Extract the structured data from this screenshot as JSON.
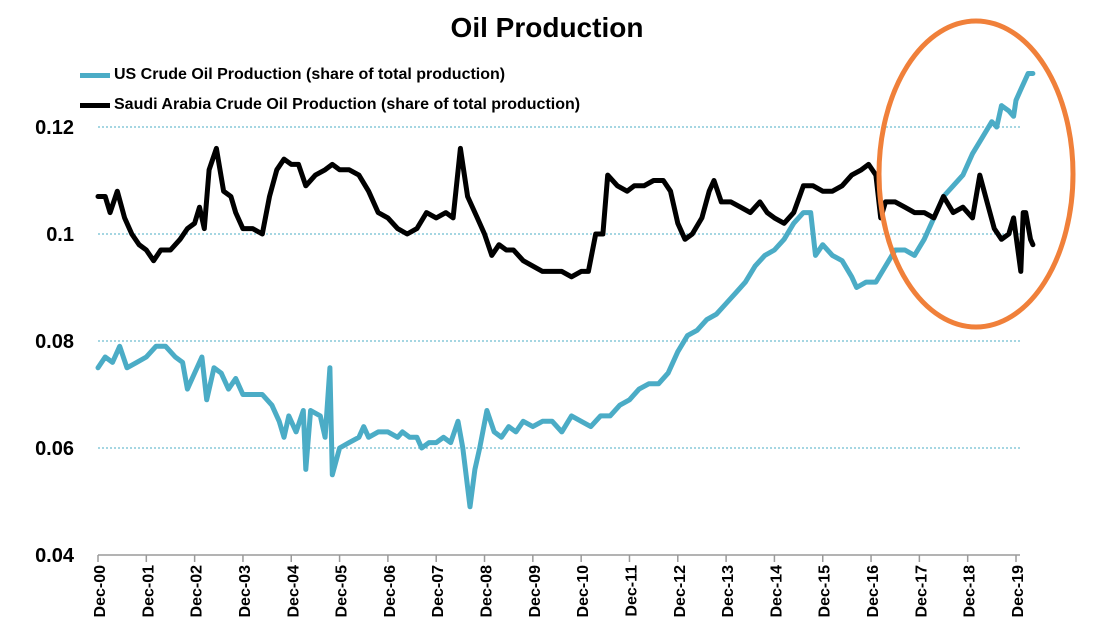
{
  "chart_data": {
    "type": "line",
    "title": "Oil Production",
    "xlabel": "",
    "ylabel": "",
    "ylim": [
      0.04,
      0.13
    ],
    "y_ticks": [
      "0.04",
      "0.06",
      "0.08",
      "0.1",
      "0.12"
    ],
    "x_ticks": [
      "Dec-00",
      "Dec-01",
      "Dec-02",
      "Dec-03",
      "Dec-04",
      "Dec-05",
      "Dec-06",
      "Dec-07",
      "Dec-08",
      "Dec-09",
      "Dec-10",
      "Dec-11",
      "Dec-12",
      "Dec-13",
      "Dec-14",
      "Dec-15",
      "Dec-16",
      "Dec-17",
      "Dec-18",
      "Dec-19"
    ],
    "x_range_years_since_dec00": [
      0,
      19
    ],
    "grid": "horizontal dashed",
    "legend_position": "top-left",
    "series": [
      {
        "name": "US Crude Oil Production (share of total production)",
        "color": "#4bacc6",
        "points": [
          [
            0,
            0.075
          ],
          [
            0.15,
            0.077
          ],
          [
            0.3,
            0.076
          ],
          [
            0.45,
            0.079
          ],
          [
            0.6,
            0.075
          ],
          [
            0.8,
            0.076
          ],
          [
            1.0,
            0.077
          ],
          [
            1.2,
            0.079
          ],
          [
            1.4,
            0.079
          ],
          [
            1.6,
            0.077
          ],
          [
            1.75,
            0.076
          ],
          [
            1.85,
            0.071
          ],
          [
            2.0,
            0.074
          ],
          [
            2.15,
            0.077
          ],
          [
            2.25,
            0.069
          ],
          [
            2.4,
            0.075
          ],
          [
            2.55,
            0.074
          ],
          [
            2.7,
            0.071
          ],
          [
            2.85,
            0.073
          ],
          [
            3.0,
            0.07
          ],
          [
            3.2,
            0.07
          ],
          [
            3.4,
            0.07
          ],
          [
            3.6,
            0.068
          ],
          [
            3.75,
            0.065
          ],
          [
            3.85,
            0.062
          ],
          [
            3.95,
            0.066
          ],
          [
            4.1,
            0.063
          ],
          [
            4.25,
            0.067
          ],
          [
            4.3,
            0.056
          ],
          [
            4.4,
            0.067
          ],
          [
            4.6,
            0.066
          ],
          [
            4.7,
            0.062
          ],
          [
            4.8,
            0.075
          ],
          [
            4.85,
            0.055
          ],
          [
            5.0,
            0.06
          ],
          [
            5.2,
            0.061
          ],
          [
            5.4,
            0.062
          ],
          [
            5.5,
            0.064
          ],
          [
            5.6,
            0.062
          ],
          [
            5.8,
            0.063
          ],
          [
            6.0,
            0.063
          ],
          [
            6.2,
            0.062
          ],
          [
            6.3,
            0.063
          ],
          [
            6.45,
            0.062
          ],
          [
            6.6,
            0.062
          ],
          [
            6.7,
            0.06
          ],
          [
            6.85,
            0.061
          ],
          [
            7.0,
            0.061
          ],
          [
            7.15,
            0.062
          ],
          [
            7.3,
            0.061
          ],
          [
            7.45,
            0.065
          ],
          [
            7.55,
            0.06
          ],
          [
            7.7,
            0.049
          ],
          [
            7.8,
            0.056
          ],
          [
            7.9,
            0.06
          ],
          [
            8.05,
            0.067
          ],
          [
            8.2,
            0.063
          ],
          [
            8.35,
            0.062
          ],
          [
            8.5,
            0.064
          ],
          [
            8.65,
            0.063
          ],
          [
            8.8,
            0.065
          ],
          [
            9.0,
            0.064
          ],
          [
            9.2,
            0.065
          ],
          [
            9.4,
            0.065
          ],
          [
            9.6,
            0.063
          ],
          [
            9.8,
            0.066
          ],
          [
            10.0,
            0.065
          ],
          [
            10.2,
            0.064
          ],
          [
            10.4,
            0.066
          ],
          [
            10.6,
            0.066
          ],
          [
            10.8,
            0.068
          ],
          [
            11.0,
            0.069
          ],
          [
            11.2,
            0.071
          ],
          [
            11.4,
            0.072
          ],
          [
            11.6,
            0.072
          ],
          [
            11.8,
            0.074
          ],
          [
            12.0,
            0.078
          ],
          [
            12.2,
            0.081
          ],
          [
            12.4,
            0.082
          ],
          [
            12.6,
            0.084
          ],
          [
            12.8,
            0.085
          ],
          [
            13.0,
            0.087
          ],
          [
            13.2,
            0.089
          ],
          [
            13.4,
            0.091
          ],
          [
            13.6,
            0.094
          ],
          [
            13.8,
            0.096
          ],
          [
            14.0,
            0.097
          ],
          [
            14.2,
            0.099
          ],
          [
            14.4,
            0.102
          ],
          [
            14.6,
            0.104
          ],
          [
            14.75,
            0.104
          ],
          [
            14.85,
            0.096
          ],
          [
            15.0,
            0.098
          ],
          [
            15.2,
            0.096
          ],
          [
            15.4,
            0.095
          ],
          [
            15.6,
            0.092
          ],
          [
            15.7,
            0.09
          ],
          [
            15.9,
            0.091
          ],
          [
            16.1,
            0.091
          ],
          [
            16.3,
            0.094
          ],
          [
            16.5,
            0.097
          ],
          [
            16.7,
            0.097
          ],
          [
            16.9,
            0.096
          ],
          [
            17.1,
            0.099
          ],
          [
            17.3,
            0.103
          ],
          [
            17.5,
            0.107
          ],
          [
            17.7,
            0.109
          ],
          [
            17.9,
            0.111
          ],
          [
            18.1,
            0.115
          ],
          [
            18.3,
            0.118
          ],
          [
            18.5,
            0.121
          ],
          [
            18.6,
            0.12
          ],
          [
            18.7,
            0.124
          ],
          [
            18.85,
            0.123
          ],
          [
            18.95,
            0.122
          ],
          [
            19.0,
            0.125
          ],
          [
            19.1,
            0.127
          ],
          [
            19.25,
            0.13
          ],
          [
            19.35,
            0.13
          ]
        ]
      },
      {
        "name": "Saudi Arabia Crude Oil Production (share of total production)",
        "color": "#000000",
        "points": [
          [
            0,
            0.107
          ],
          [
            0.15,
            0.107
          ],
          [
            0.25,
            0.104
          ],
          [
            0.4,
            0.108
          ],
          [
            0.55,
            0.103
          ],
          [
            0.7,
            0.1
          ],
          [
            0.85,
            0.098
          ],
          [
            1.0,
            0.097
          ],
          [
            1.15,
            0.095
          ],
          [
            1.3,
            0.097
          ],
          [
            1.5,
            0.097
          ],
          [
            1.7,
            0.099
          ],
          [
            1.85,
            0.101
          ],
          [
            2.0,
            0.102
          ],
          [
            2.1,
            0.105
          ],
          [
            2.2,
            0.101
          ],
          [
            2.3,
            0.112
          ],
          [
            2.45,
            0.116
          ],
          [
            2.6,
            0.108
          ],
          [
            2.75,
            0.107
          ],
          [
            2.85,
            0.104
          ],
          [
            3.0,
            0.101
          ],
          [
            3.2,
            0.101
          ],
          [
            3.4,
            0.1
          ],
          [
            3.55,
            0.107
          ],
          [
            3.7,
            0.112
          ],
          [
            3.85,
            0.114
          ],
          [
            4.0,
            0.113
          ],
          [
            4.15,
            0.113
          ],
          [
            4.3,
            0.109
          ],
          [
            4.5,
            0.111
          ],
          [
            4.7,
            0.112
          ],
          [
            4.85,
            0.113
          ],
          [
            5.0,
            0.112
          ],
          [
            5.2,
            0.112
          ],
          [
            5.4,
            0.111
          ],
          [
            5.6,
            0.108
          ],
          [
            5.8,
            0.104
          ],
          [
            6.0,
            0.103
          ],
          [
            6.2,
            0.101
          ],
          [
            6.4,
            0.1
          ],
          [
            6.6,
            0.101
          ],
          [
            6.8,
            0.104
          ],
          [
            7.0,
            0.103
          ],
          [
            7.2,
            0.104
          ],
          [
            7.35,
            0.103
          ],
          [
            7.5,
            0.116
          ],
          [
            7.65,
            0.107
          ],
          [
            7.85,
            0.103
          ],
          [
            8.0,
            0.1
          ],
          [
            8.15,
            0.096
          ],
          [
            8.3,
            0.098
          ],
          [
            8.45,
            0.097
          ],
          [
            8.6,
            0.097
          ],
          [
            8.8,
            0.095
          ],
          [
            9.0,
            0.094
          ],
          [
            9.2,
            0.093
          ],
          [
            9.4,
            0.093
          ],
          [
            9.6,
            0.093
          ],
          [
            9.8,
            0.092
          ],
          [
            10.0,
            0.093
          ],
          [
            10.15,
            0.093
          ],
          [
            10.3,
            0.1
          ],
          [
            10.45,
            0.1
          ],
          [
            10.55,
            0.111
          ],
          [
            10.75,
            0.109
          ],
          [
            10.95,
            0.108
          ],
          [
            11.1,
            0.109
          ],
          [
            11.3,
            0.109
          ],
          [
            11.5,
            0.11
          ],
          [
            11.7,
            0.11
          ],
          [
            11.85,
            0.108
          ],
          [
            12.0,
            0.102
          ],
          [
            12.15,
            0.099
          ],
          [
            12.3,
            0.1
          ],
          [
            12.5,
            0.103
          ],
          [
            12.65,
            0.108
          ],
          [
            12.75,
            0.11
          ],
          [
            12.9,
            0.106
          ],
          [
            13.1,
            0.106
          ],
          [
            13.3,
            0.105
          ],
          [
            13.5,
            0.104
          ],
          [
            13.7,
            0.106
          ],
          [
            13.85,
            0.104
          ],
          [
            14.0,
            0.103
          ],
          [
            14.2,
            0.102
          ],
          [
            14.4,
            0.104
          ],
          [
            14.6,
            0.109
          ],
          [
            14.8,
            0.109
          ],
          [
            15.0,
            0.108
          ],
          [
            15.2,
            0.108
          ],
          [
            15.4,
            0.109
          ],
          [
            15.6,
            0.111
          ],
          [
            15.8,
            0.112
          ],
          [
            15.95,
            0.113
          ],
          [
            16.1,
            0.111
          ],
          [
            16.2,
            0.103
          ],
          [
            16.3,
            0.106
          ],
          [
            16.5,
            0.106
          ],
          [
            16.7,
            0.105
          ],
          [
            16.9,
            0.104
          ],
          [
            17.1,
            0.104
          ],
          [
            17.3,
            0.103
          ],
          [
            17.5,
            0.107
          ],
          [
            17.7,
            0.104
          ],
          [
            17.9,
            0.105
          ],
          [
            18.1,
            0.103
          ],
          [
            18.25,
            0.111
          ],
          [
            18.4,
            0.106
          ],
          [
            18.55,
            0.101
          ],
          [
            18.7,
            0.099
          ],
          [
            18.85,
            0.1
          ],
          [
            18.95,
            0.103
          ],
          [
            19.1,
            0.093
          ],
          [
            19.15,
            0.104
          ],
          [
            19.2,
            0.104
          ],
          [
            19.3,
            0.099
          ],
          [
            19.35,
            0.098
          ]
        ]
      }
    ]
  }
}
